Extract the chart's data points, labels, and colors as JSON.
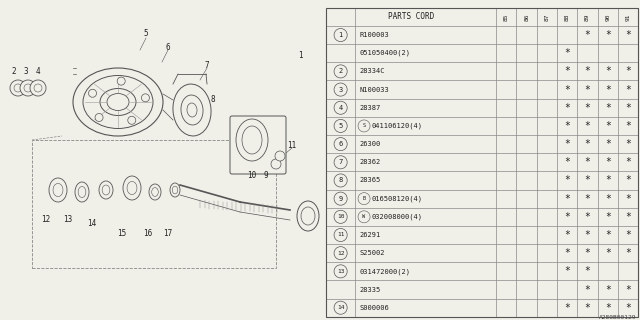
{
  "fig_code": "A280B00129",
  "col_headers": [
    "85",
    "86",
    "87",
    "88",
    "89",
    "90",
    "91"
  ],
  "rows": [
    {
      "num": "1",
      "part": "R100003",
      "prefix": "",
      "stars": [
        0,
        0,
        0,
        0,
        1,
        1,
        1
      ]
    },
    {
      "num": "",
      "part": "051050400(2)",
      "prefix": "",
      "stars": [
        0,
        0,
        0,
        1,
        0,
        0,
        0
      ]
    },
    {
      "num": "2",
      "part": "28334C",
      "prefix": "",
      "stars": [
        0,
        0,
        0,
        1,
        1,
        1,
        1
      ]
    },
    {
      "num": "3",
      "part": "N100033",
      "prefix": "",
      "stars": [
        0,
        0,
        0,
        1,
        1,
        1,
        1
      ]
    },
    {
      "num": "4",
      "part": "28387",
      "prefix": "",
      "stars": [
        0,
        0,
        0,
        1,
        1,
        1,
        1
      ]
    },
    {
      "num": "5",
      "part": "041106120(4)",
      "prefix": "S",
      "stars": [
        0,
        0,
        0,
        1,
        1,
        1,
        1
      ]
    },
    {
      "num": "6",
      "part": "26300",
      "prefix": "",
      "stars": [
        0,
        0,
        0,
        1,
        1,
        1,
        1
      ]
    },
    {
      "num": "7",
      "part": "28362",
      "prefix": "",
      "stars": [
        0,
        0,
        0,
        1,
        1,
        1,
        1
      ]
    },
    {
      "num": "8",
      "part": "28365",
      "prefix": "",
      "stars": [
        0,
        0,
        0,
        1,
        1,
        1,
        1
      ]
    },
    {
      "num": "9",
      "part": "016508120(4)",
      "prefix": "B",
      "stars": [
        0,
        0,
        0,
        1,
        1,
        1,
        1
      ]
    },
    {
      "num": "10",
      "part": "032008000(4)",
      "prefix": "W",
      "stars": [
        0,
        0,
        0,
        1,
        1,
        1,
        1
      ]
    },
    {
      "num": "11",
      "part": "26291",
      "prefix": "",
      "stars": [
        0,
        0,
        0,
        1,
        1,
        1,
        1
      ]
    },
    {
      "num": "12",
      "part": "S25002",
      "prefix": "",
      "stars": [
        0,
        0,
        0,
        1,
        1,
        1,
        1
      ]
    },
    {
      "num": "13",
      "part": "031472000(2)",
      "prefix": "",
      "stars": [
        0,
        0,
        0,
        1,
        1,
        0,
        0
      ]
    },
    {
      "num": "",
      "part": "28335",
      "prefix": "",
      "stars": [
        0,
        0,
        0,
        0,
        1,
        1,
        1
      ]
    },
    {
      "num": "14",
      "part": "S000006",
      "prefix": "",
      "stars": [
        0,
        0,
        0,
        1,
        1,
        1,
        1
      ]
    }
  ],
  "bg_color": "#f0efe8",
  "line_color": "#777777",
  "text_color": "#222222"
}
